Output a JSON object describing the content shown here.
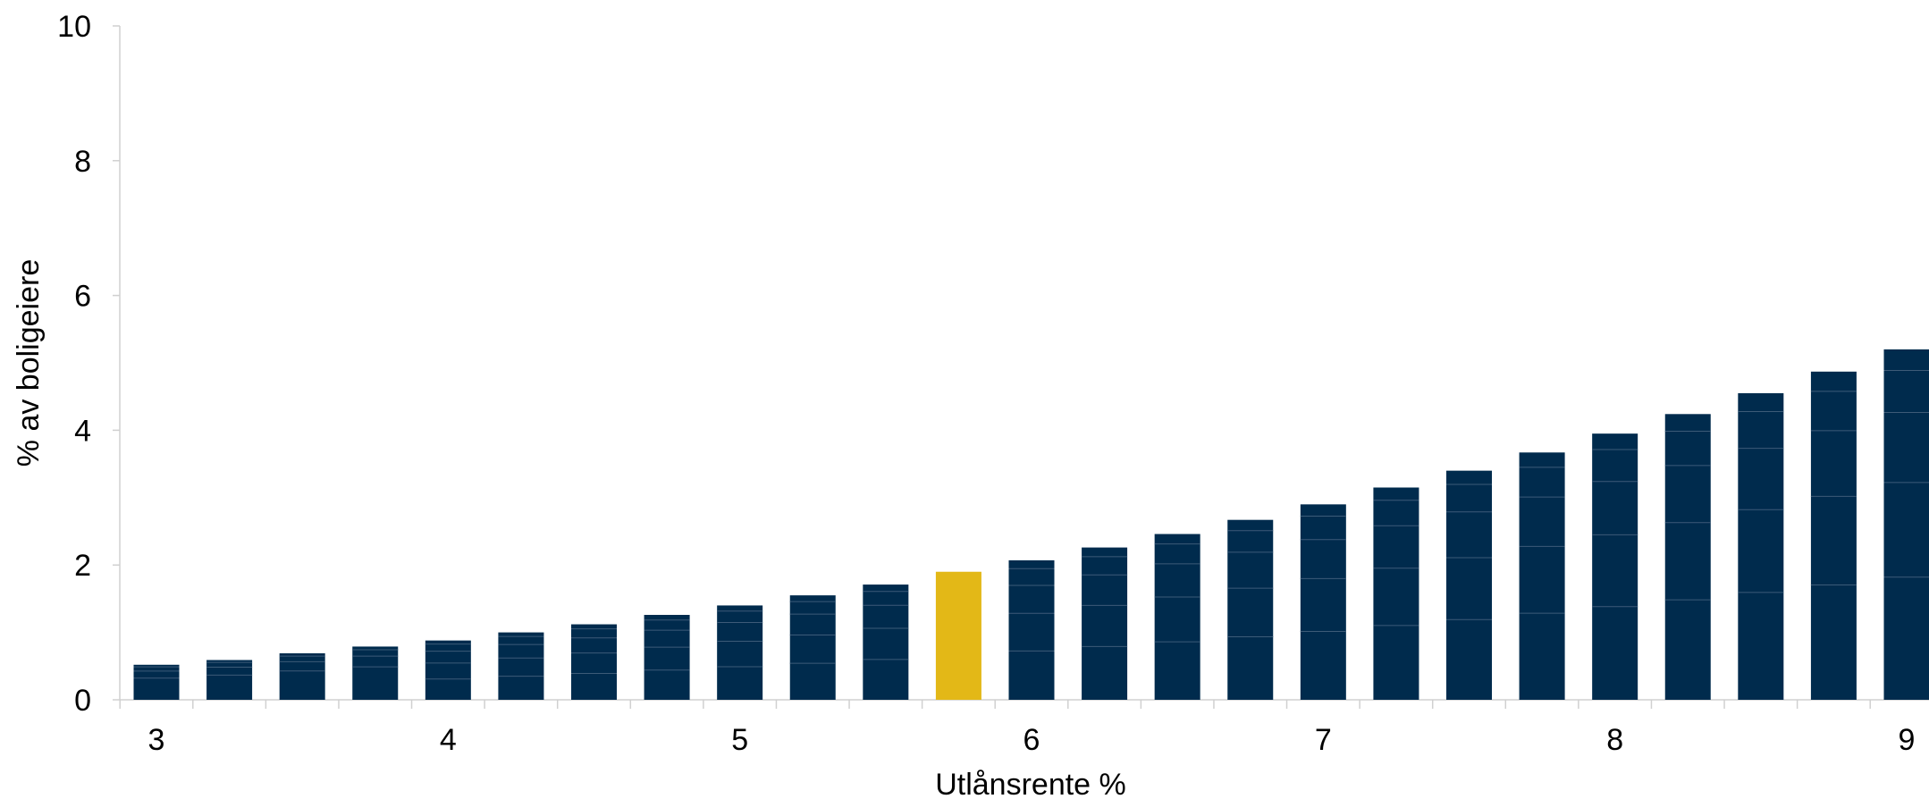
{
  "chart_data": {
    "type": "bar",
    "title": "",
    "xlabel": "Utlånsrente %",
    "ylabel": "% av boligeiere",
    "ylim": [
      0,
      10
    ],
    "yticks": [
      "0",
      "2",
      "4",
      "6",
      "8",
      "10"
    ],
    "xticks": [
      "3",
      "4",
      "5",
      "6",
      "7",
      "8",
      "9"
    ],
    "x": [
      3.0,
      3.25,
      3.5,
      3.75,
      4.0,
      4.25,
      4.5,
      4.75,
      5.0,
      5.25,
      5.5,
      5.75,
      6.0,
      6.25,
      6.5,
      6.75,
      7.0,
      7.25,
      7.5,
      7.75,
      8.0,
      8.25,
      8.5,
      8.75,
      9.0
    ],
    "values": [
      0.52,
      0.59,
      0.69,
      0.79,
      0.88,
      1.0,
      1.12,
      1.26,
      1.4,
      1.55,
      1.71,
      1.9,
      2.07,
      2.26,
      2.46,
      2.67,
      2.9,
      3.15,
      3.4,
      3.67,
      3.95,
      4.24,
      4.55,
      4.87,
      5.2
    ],
    "highlight_index": 11,
    "grid": false,
    "colors": {
      "bar": "#002b4d",
      "highlight": "#e3b817",
      "axis": "#d0d0d0",
      "segment_line": "#3d5b78"
    }
  }
}
